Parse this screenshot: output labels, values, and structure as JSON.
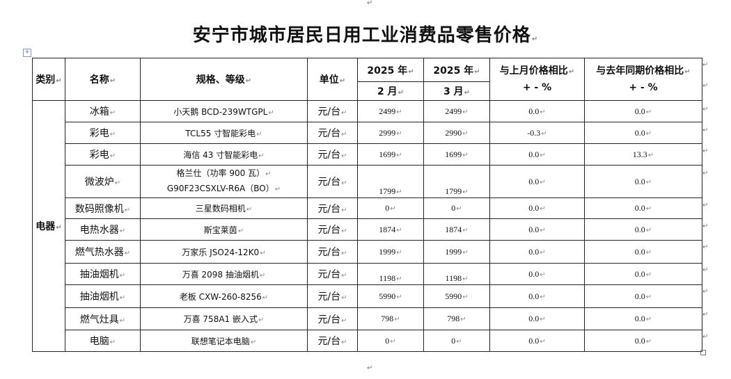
{
  "title": "安宁市城市居民日用工业消费品零售价格",
  "marks": {
    "paragraph": "↵",
    "cell": "↵",
    "move_handle": "+"
  },
  "header": {
    "category": "类别",
    "name": "名称",
    "spec": "规格、等级",
    "unit": "单位",
    "year_feb": "2025 年",
    "month_feb": "2 月",
    "year_mar": "2025 年",
    "month_mar": "3 月",
    "mom": "与上月价格相比",
    "mom_sub": "+ - %",
    "yoy": "与去年同期价格相比",
    "yoy_sub": "+ - %"
  },
  "category": "电器",
  "rows": [
    {
      "name": "冰箱",
      "spec": "小天鹅  BCD-239WTGPL",
      "unit": "元/台",
      "feb": "2499",
      "mar": "2499",
      "mom": "0.0",
      "yoy": "0.0"
    },
    {
      "name": "彩电",
      "spec": "TCL55 寸智能彩电",
      "unit": "元/台",
      "feb": "2999",
      "mar": "2990",
      "mom": "-0.3",
      "yoy": "0.0"
    },
    {
      "name": "彩电",
      "spec": "海信 43 寸智能彩电",
      "unit": "元/台",
      "feb": "1699",
      "mar": "1699",
      "mom": "0.0",
      "yoy": "13.3"
    },
    {
      "name": "微波炉",
      "spec": "格兰仕（功率 900 瓦）",
      "spec2": "G90F23CSXLV-R6A（BO）",
      "unit": "元/台",
      "feb": "1799",
      "mar": "1799",
      "mom": "0.0",
      "yoy": "0.0"
    },
    {
      "name": "数码照像机",
      "spec": "三星数码相机",
      "unit": "元/台",
      "feb": "0",
      "mar": "0",
      "mom": "0.0",
      "yoy": "0.0"
    },
    {
      "name": "电热水器",
      "spec": "斯宝莱茵",
      "unit": "元/台",
      "feb": "1874",
      "mar": "1874",
      "mom": "0.0",
      "yoy": "0.0"
    },
    {
      "name": "燃气热水器",
      "spec": "万家乐  JSO24-12K0",
      "unit": "元/台",
      "feb": "1999",
      "mar": "1999",
      "mom": "0.0",
      "yoy": "0.0"
    },
    {
      "name": "抽油烟机",
      "spec": "万喜 2098 抽油烟机",
      "unit": "元/台",
      "feb": "1198",
      "mar": "1198",
      "mom": "0.0",
      "yoy": "0.0"
    },
    {
      "name": "抽油烟机",
      "spec": "老板 CXW-260-8256",
      "unit": "元/台",
      "feb": "5990",
      "mar": "5990",
      "mom": "0.0",
      "yoy": "0.0"
    },
    {
      "name": "燃气灶具",
      "spec": "万喜 758A1 嵌入式",
      "unit": "元/台",
      "feb": "798",
      "mar": "798",
      "mom": "0.0",
      "yoy": "0.0"
    },
    {
      "name": "电脑",
      "spec": "联想笔记本电脑",
      "unit": "元/台",
      "feb": "0",
      "mar": "0",
      "mom": "0.0",
      "yoy": "0.0"
    }
  ]
}
